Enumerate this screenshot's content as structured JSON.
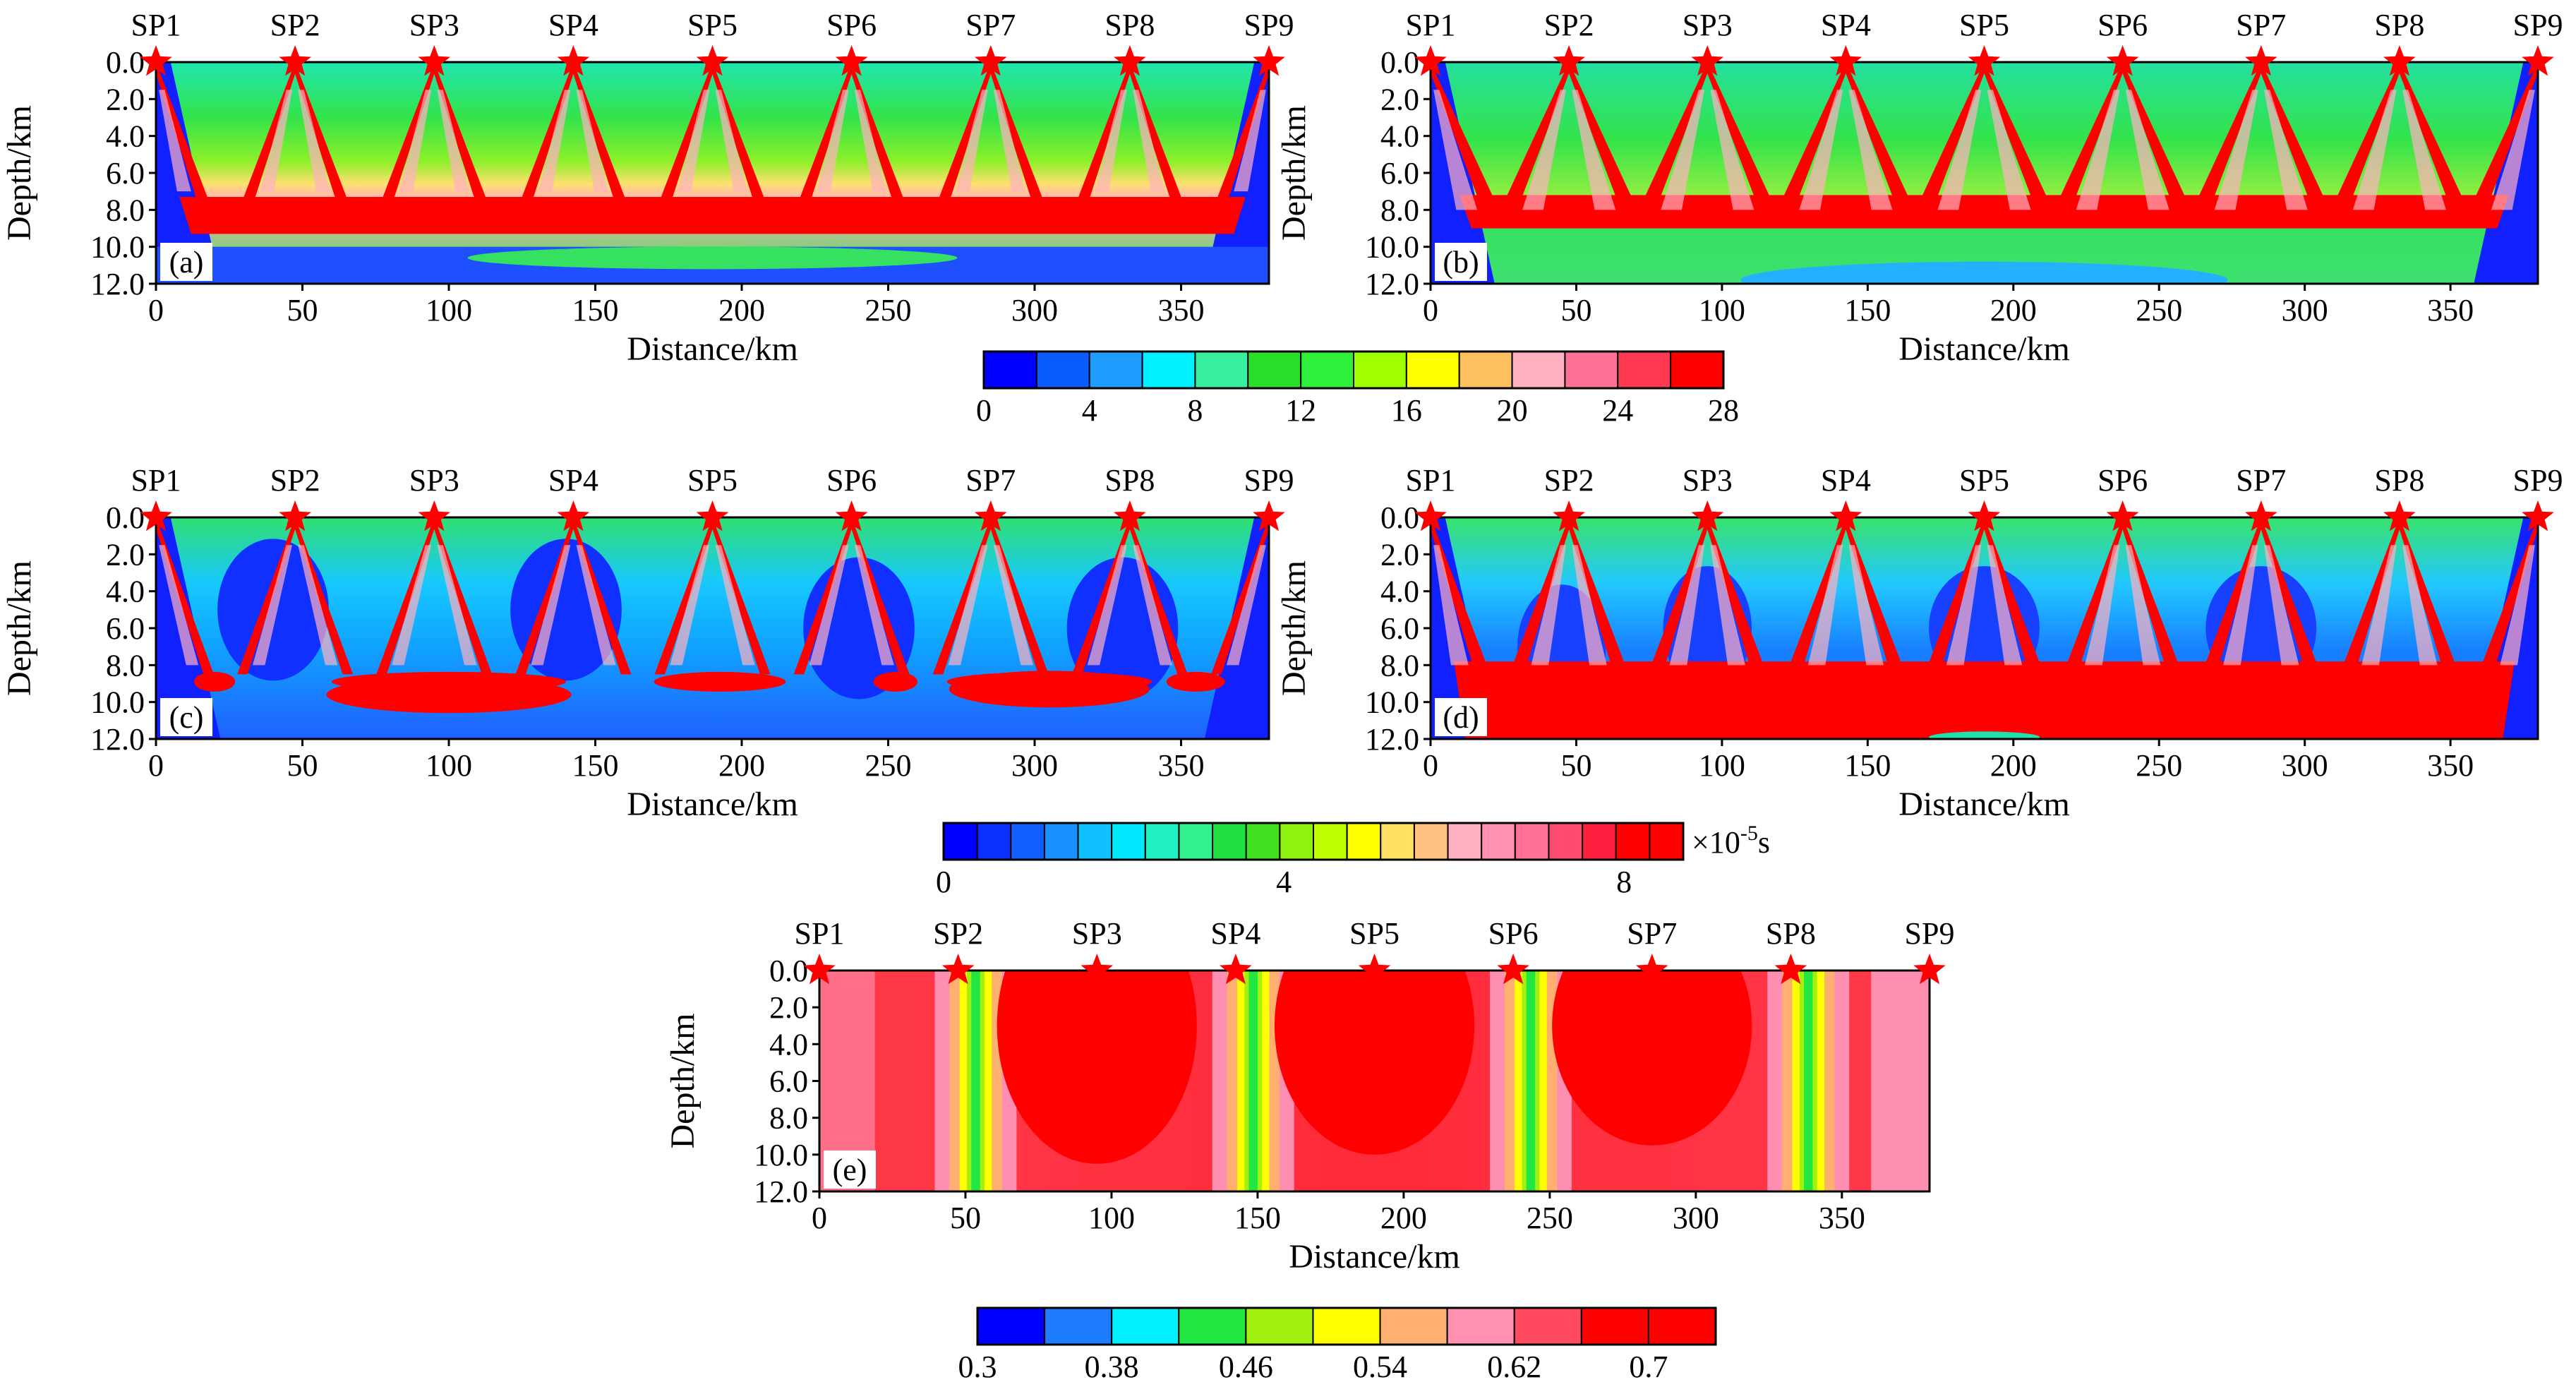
{
  "figure": {
    "xlabel": "Distance/km",
    "ylabel": "Depth/km",
    "shotpoints": [
      "SP1",
      "SP2",
      "SP3",
      "SP4",
      "SP5",
      "SP6",
      "SP7",
      "SP8",
      "SP9"
    ],
    "shotpoint_x_km": [
      0,
      47.5,
      95,
      142.5,
      190,
      237.5,
      285,
      332.5,
      380
    ],
    "x_ticks": [
      0,
      50,
      100,
      150,
      200,
      250,
      300,
      350
    ],
    "y_ticks": [
      "0.0",
      "2.0",
      "4.0",
      "6.0",
      "8.0",
      "10.0",
      "12.0"
    ],
    "xlim": [
      0,
      380
    ],
    "ylim": [
      0,
      12
    ],
    "colors": {
      "high": "#ff0000",
      "low": "#0000ff",
      "star": "#ff0000",
      "panel_bg_a": "#2dd94a",
      "panel_bg_c": "#1e8cff",
      "panel_bg_e": "#ff2a2a"
    }
  },
  "chart_data": [
    {
      "type": "heatmap",
      "panel": "(a)",
      "xlabel": "Distance/km",
      "ylabel": "Depth/km",
      "xlim": [
        0,
        380
      ],
      "ylim": [
        12,
        0
      ],
      "high_value_features": "fan-shaped ray paths from each shot point down to ~8-10 km depth, joined by a horizontal band at 8-10 km"
    },
    {
      "type": "heatmap",
      "panel": "(b)",
      "xlabel": "Distance/km",
      "ylabel": "Depth/km",
      "xlim": [
        0,
        380
      ],
      "ylim": [
        12,
        0
      ]
    },
    {
      "type": "heatmap",
      "panel": "(c)",
      "xlabel": "Distance/km",
      "ylabel": "Depth/km",
      "xlim": [
        0,
        380
      ],
      "ylim": [
        12,
        0
      ]
    },
    {
      "type": "heatmap",
      "panel": "(d)",
      "xlabel": "Distance/km",
      "ylabel": "Depth/km",
      "xlim": [
        0,
        380
      ],
      "ylim": [
        12,
        0
      ]
    },
    {
      "type": "heatmap",
      "panel": "(e)",
      "xlabel": "Distance/km",
      "ylabel": "Depth/km",
      "xlim": [
        0,
        380
      ],
      "ylim": [
        12,
        0
      ]
    }
  ],
  "colorbars": [
    {
      "id": "cb1",
      "tick_labels": [
        "0",
        "4",
        "8",
        "12",
        "16",
        "20",
        "24",
        "28"
      ],
      "unit": "",
      "colors": [
        "#0000ff",
        "#0a5cff",
        "#1e9cff",
        "#00f0ff",
        "#36f0a0",
        "#2adf2a",
        "#2ef03a",
        "#a0ff00",
        "#ffff00",
        "#ffc060",
        "#ffb0c0",
        "#ff6f96",
        "#ff3a50",
        "#ff0000"
      ]
    },
    {
      "id": "cb2",
      "tick_labels": [
        "0",
        "4",
        "8"
      ],
      "unit_main": "×10",
      "unit_exp": "-5",
      "unit_suffix": "s",
      "colors": [
        "#0000ff",
        "#0a30ff",
        "#1060ff",
        "#1a90ff",
        "#10c0ff",
        "#00e8ff",
        "#20f0c0",
        "#30f090",
        "#20e040",
        "#40e020",
        "#90f010",
        "#c0ff00",
        "#ffff00",
        "#ffe060",
        "#ffc080",
        "#ffb0c0",
        "#ff90b0",
        "#ff6f96",
        "#ff4a70",
        "#ff2040",
        "#ff0000",
        "#ff0000"
      ]
    },
    {
      "id": "cb3",
      "tick_labels": [
        "0.3",
        "0.38",
        "0.46",
        "0.54",
        "0.62",
        "0.7"
      ],
      "colors": [
        "#0000ff",
        "#1e7cff",
        "#00f0ff",
        "#22e642",
        "#a0f010",
        "#ffff00",
        "#ffb070",
        "#ff90b0",
        "#ff4a60",
        "#ff0000",
        "#ff0000"
      ]
    }
  ]
}
